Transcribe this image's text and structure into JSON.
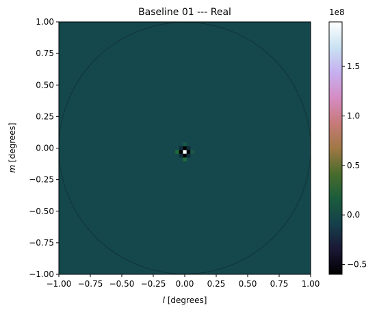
{
  "chart_data": {
    "type": "heatmap",
    "title": "Baseline 01 --- Real",
    "xlabel_italic": "l",
    "xlabel_rest": " [degrees]",
    "ylabel_italic": "m",
    "ylabel_rest": " [degrees]",
    "xlim": [
      -1.0,
      1.0
    ],
    "ylim": [
      -1.0,
      1.0
    ],
    "x_ticks": [
      {
        "value": -1.0,
        "label": "−1.00"
      },
      {
        "value": -0.75,
        "label": "−0.75"
      },
      {
        "value": -0.5,
        "label": "−0.50"
      },
      {
        "value": -0.25,
        "label": "−0.25"
      },
      {
        "value": 0.0,
        "label": "0.00"
      },
      {
        "value": 0.25,
        "label": "0.25"
      },
      {
        "value": 0.5,
        "label": "0.50"
      },
      {
        "value": 0.75,
        "label": "0.75"
      },
      {
        "value": 1.0,
        "label": "1.00"
      }
    ],
    "y_ticks": [
      {
        "value": 1.0,
        "label": "1.00"
      },
      {
        "value": 0.75,
        "label": "0.75"
      },
      {
        "value": 0.5,
        "label": "0.50"
      },
      {
        "value": 0.25,
        "label": "0.25"
      },
      {
        "value": 0.0,
        "label": "0.00"
      },
      {
        "value": -0.25,
        "label": "−0.25"
      },
      {
        "value": -0.5,
        "label": "−0.50"
      },
      {
        "value": -0.75,
        "label": "−0.75"
      },
      {
        "value": -1.0,
        "label": "−1.00"
      }
    ],
    "background_value": 0.0,
    "background_color": "#15484d",
    "horizon_circle": {
      "center": [
        0.0,
        0.0
      ],
      "radius_deg": 1.0,
      "color": "#0f3438"
    },
    "source_cells": [
      {
        "l": 0.0,
        "m": -0.03,
        "value": 195000000.0,
        "color": "#ffffff"
      },
      {
        "l": -0.03,
        "m": -0.03,
        "value": -60000000.0,
        "color": "#000000"
      },
      {
        "l": 0.03,
        "m": -0.03,
        "value": -60000000.0,
        "color": "#000000"
      },
      {
        "l": 0.0,
        "m": 0.0,
        "value": -60000000.0,
        "color": "#000000"
      },
      {
        "l": 0.0,
        "m": -0.06,
        "value": -60000000.0,
        "color": "#000000"
      },
      {
        "l": -0.06,
        "m": -0.03,
        "value": 10000000.0,
        "color": "#1f6a3a"
      },
      {
        "l": 0.06,
        "m": -0.03,
        "value": 5000000.0,
        "color": "#1a5a48"
      },
      {
        "l": 0.0,
        "m": 0.03,
        "value": 5000000.0,
        "color": "#1a5a48"
      },
      {
        "l": 0.0,
        "m": -0.09,
        "value": 10000000.0,
        "color": "#1f6a3a"
      },
      {
        "l": -0.03,
        "m": 0.0,
        "value": -10000000.0,
        "color": "#0f2e3a"
      },
      {
        "l": 0.03,
        "m": 0.0,
        "value": -10000000.0,
        "color": "#0f2e3a"
      },
      {
        "l": -0.03,
        "m": -0.06,
        "value": -10000000.0,
        "color": "#0f2e3a"
      },
      {
        "l": 0.03,
        "m": -0.06,
        "value": -10000000.0,
        "color": "#0f2e3a"
      }
    ],
    "colorbar": {
      "multiplier_label": "1e8",
      "vmin": -0.6,
      "vmax": 1.95,
      "ticks": [
        {
          "value": 1.5,
          "label": "1.5"
        },
        {
          "value": 1.0,
          "label": "1.0"
        },
        {
          "value": 0.5,
          "label": "0.5"
        },
        {
          "value": 0.0,
          "label": "0.0"
        },
        {
          "value": -0.5,
          "label": "−0.5"
        }
      ],
      "colormap": "cubehelix",
      "stops": [
        {
          "offset": 0.0,
          "color": "#000000"
        },
        {
          "offset": 0.1,
          "color": "#1b1735"
        },
        {
          "offset": 0.2,
          "color": "#15404b"
        },
        {
          "offset": 0.3,
          "color": "#1a5c3c"
        },
        {
          "offset": 0.4,
          "color": "#4a6c2c"
        },
        {
          "offset": 0.5,
          "color": "#a07845"
        },
        {
          "offset": 0.6,
          "color": "#c77a7a"
        },
        {
          "offset": 0.7,
          "color": "#d58cc4"
        },
        {
          "offset": 0.8,
          "color": "#c6b0f0"
        },
        {
          "offset": 0.9,
          "color": "#c9e2f2"
        },
        {
          "offset": 1.0,
          "color": "#ffffff"
        }
      ]
    }
  }
}
